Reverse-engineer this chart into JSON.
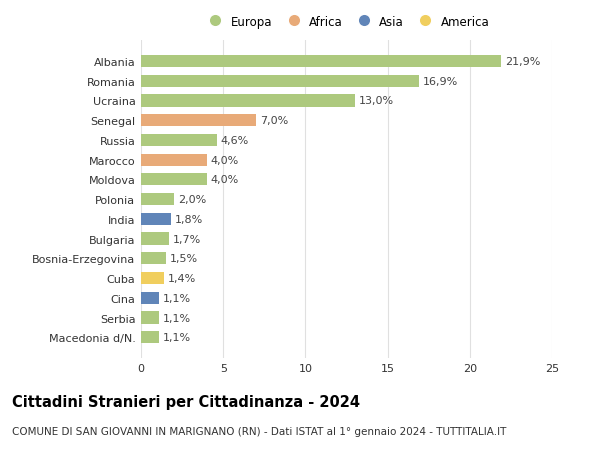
{
  "countries": [
    "Albania",
    "Romania",
    "Ucraina",
    "Senegal",
    "Russia",
    "Marocco",
    "Moldova",
    "Polonia",
    "India",
    "Bulgaria",
    "Bosnia-Erzegovina",
    "Cuba",
    "Cina",
    "Serbia",
    "Macedonia d/N."
  ],
  "values": [
    21.9,
    16.9,
    13.0,
    7.0,
    4.6,
    4.0,
    4.0,
    2.0,
    1.8,
    1.7,
    1.5,
    1.4,
    1.1,
    1.1,
    1.1
  ],
  "labels": [
    "21,9%",
    "16,9%",
    "13,0%",
    "7,0%",
    "4,6%",
    "4,0%",
    "4,0%",
    "2,0%",
    "1,8%",
    "1,7%",
    "1,5%",
    "1,4%",
    "1,1%",
    "1,1%",
    "1,1%"
  ],
  "continent": [
    "Europa",
    "Europa",
    "Europa",
    "Africa",
    "Europa",
    "Africa",
    "Europa",
    "Europa",
    "Asia",
    "Europa",
    "Europa",
    "America",
    "Asia",
    "Europa",
    "Europa"
  ],
  "colors": {
    "Europa": "#adc97e",
    "Africa": "#e8aa78",
    "Asia": "#6085b8",
    "America": "#f0ce5e"
  },
  "title": "Cittadini Stranieri per Cittadinanza - 2024",
  "subtitle": "COMUNE DI SAN GIOVANNI IN MARIGNANO (RN) - Dati ISTAT al 1° gennaio 2024 - TUTTITALIA.IT",
  "xlim": [
    0,
    25
  ],
  "xticks": [
    0,
    5,
    10,
    15,
    20,
    25
  ],
  "background_color": "#ffffff",
  "grid_color": "#e0e0e0",
  "bar_height": 0.62,
  "title_fontsize": 10.5,
  "subtitle_fontsize": 7.5,
  "tick_fontsize": 8,
  "label_fontsize": 8,
  "legend_fontsize": 8.5
}
